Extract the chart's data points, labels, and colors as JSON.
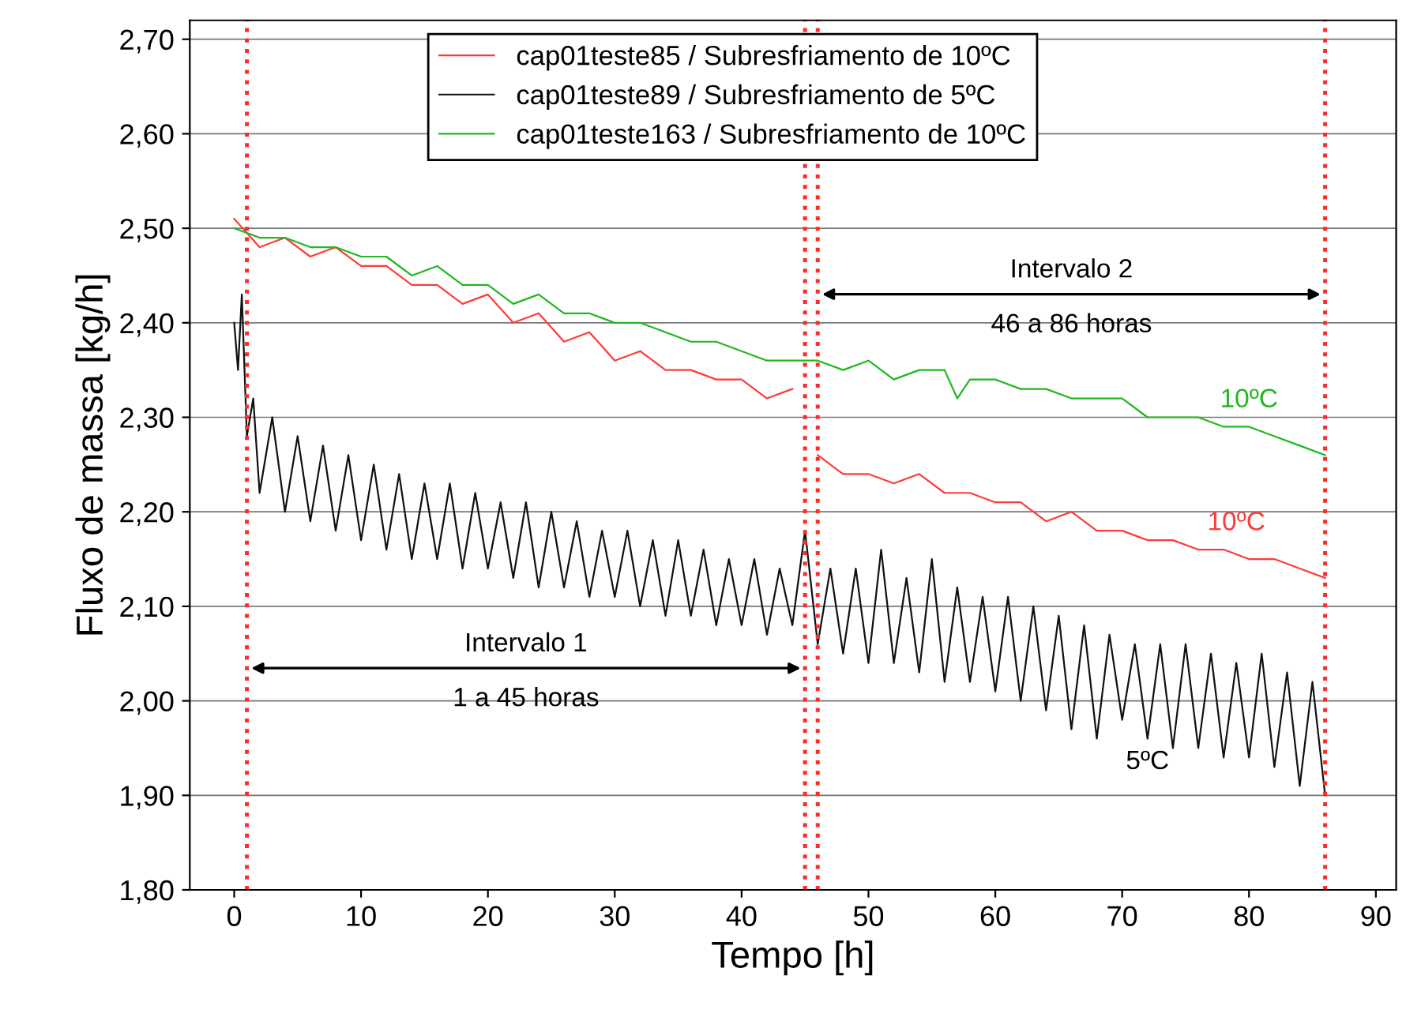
{
  "chart_data": {
    "type": "line",
    "xlabel": "Tempo [h]",
    "ylabel": "Fluxo de massa [kg/h]",
    "xlim": [
      -3.5,
      91.6
    ],
    "xticks": [
      0,
      10,
      20,
      30,
      40,
      50,
      60,
      70,
      80,
      90
    ],
    "ylim": [
      1.8,
      2.72
    ],
    "yticks": [
      {
        "value": 1.8,
        "label": "1,80"
      },
      {
        "value": 1.9,
        "label": "1,90"
      },
      {
        "value": 2.0,
        "label": "2,00"
      },
      {
        "value": 2.1,
        "label": "2,10"
      },
      {
        "value": 2.2,
        "label": "2,20"
      },
      {
        "value": 2.3,
        "label": "2,30"
      },
      {
        "value": 2.4,
        "label": "2,40"
      },
      {
        "value": 2.5,
        "label": "2,50"
      },
      {
        "value": 2.6,
        "label": "2,60"
      },
      {
        "value": 2.7,
        "label": "2,70"
      }
    ],
    "grid": "y",
    "legend": "top",
    "line_style": "solid",
    "marker": "none",
    "series": [
      {
        "name": "cap01teste85 / Subresfriamento de 10ºC",
        "color": "#ff3a3a",
        "x": [
          0,
          2,
          4,
          6,
          8,
          10,
          12,
          14,
          16,
          18,
          20,
          22,
          24,
          26,
          28,
          30,
          32,
          34,
          36,
          38,
          40,
          42,
          44,
          45,
          46,
          48,
          50,
          52,
          54,
          56,
          58,
          60,
          62,
          64,
          66,
          68,
          70,
          72,
          74,
          76,
          78,
          80,
          82,
          84,
          86
        ],
        "values": [
          2.51,
          2.48,
          2.49,
          2.47,
          2.48,
          2.46,
          2.46,
          2.44,
          2.44,
          2.42,
          2.43,
          2.4,
          2.41,
          2.38,
          2.39,
          2.36,
          2.37,
          2.35,
          2.35,
          2.34,
          2.34,
          2.32,
          2.33,
          null,
          2.26,
          2.24,
          2.24,
          2.23,
          2.24,
          2.22,
          2.22,
          2.21,
          2.21,
          2.19,
          2.2,
          2.18,
          2.18,
          2.17,
          2.17,
          2.16,
          2.16,
          2.15,
          2.15,
          2.14,
          2.13
        ]
      },
      {
        "name": "cap01teste89 / Subresfriamento de 5ºC",
        "color": "#111111",
        "x": [
          0,
          0.3,
          0.6,
          1,
          1.5,
          2,
          3,
          4,
          5,
          6,
          7,
          8,
          9,
          10,
          11,
          12,
          13,
          14,
          15,
          16,
          17,
          18,
          19,
          20,
          21,
          22,
          23,
          24,
          25,
          26,
          27,
          28,
          29,
          30,
          31,
          32,
          33,
          34,
          35,
          36,
          37,
          38,
          39,
          40,
          41,
          42,
          43,
          44,
          45,
          46,
          47,
          48,
          49,
          50,
          51,
          52,
          53,
          54,
          55,
          56,
          57,
          58,
          59,
          60,
          61,
          62,
          63,
          64,
          65,
          66,
          67,
          68,
          69,
          70,
          71,
          72,
          73,
          74,
          75,
          76,
          77,
          78,
          79,
          80,
          81,
          82,
          83,
          84,
          85,
          86
        ],
        "values": [
          2.4,
          2.35,
          2.43,
          2.28,
          2.32,
          2.22,
          2.3,
          2.2,
          2.28,
          2.19,
          2.27,
          2.18,
          2.26,
          2.17,
          2.25,
          2.16,
          2.24,
          2.15,
          2.23,
          2.15,
          2.23,
          2.14,
          2.22,
          2.14,
          2.21,
          2.13,
          2.21,
          2.12,
          2.2,
          2.12,
          2.19,
          2.11,
          2.18,
          2.11,
          2.18,
          2.1,
          2.17,
          2.09,
          2.17,
          2.09,
          2.16,
          2.08,
          2.15,
          2.08,
          2.15,
          2.07,
          2.14,
          2.08,
          2.18,
          2.06,
          2.14,
          2.05,
          2.14,
          2.04,
          2.16,
          2.04,
          2.13,
          2.03,
          2.15,
          2.02,
          2.12,
          2.02,
          2.11,
          2.01,
          2.11,
          2.0,
          2.1,
          1.99,
          2.09,
          1.97,
          2.08,
          1.96,
          2.07,
          1.98,
          2.06,
          1.96,
          2.06,
          1.95,
          2.06,
          1.95,
          2.05,
          1.94,
          2.04,
          1.94,
          2.05,
          1.93,
          2.03,
          1.91,
          2.02,
          1.9
        ]
      },
      {
        "name": "cap01teste163 / Subresfriamento de 10ºC",
        "color": "#1fb81f",
        "x": [
          0,
          2,
          4,
          6,
          8,
          10,
          12,
          14,
          16,
          18,
          20,
          22,
          24,
          26,
          28,
          30,
          32,
          34,
          36,
          38,
          40,
          42,
          44,
          46,
          48,
          50,
          52,
          54,
          56,
          57,
          58,
          60,
          62,
          64,
          66,
          68,
          70,
          72,
          74,
          76,
          78,
          80,
          82,
          84,
          86
        ],
        "values": [
          2.5,
          2.49,
          2.49,
          2.48,
          2.48,
          2.47,
          2.47,
          2.45,
          2.46,
          2.44,
          2.44,
          2.42,
          2.43,
          2.41,
          2.41,
          2.4,
          2.4,
          2.39,
          2.38,
          2.38,
          2.37,
          2.36,
          2.36,
          2.36,
          2.35,
          2.36,
          2.34,
          2.35,
          2.35,
          2.32,
          2.34,
          2.34,
          2.33,
          2.33,
          2.32,
          2.32,
          2.32,
          2.3,
          2.3,
          2.3,
          2.29,
          2.29,
          2.28,
          2.27,
          2.26
        ]
      }
    ],
    "ref_lines": [
      {
        "axis": "x",
        "value": 1,
        "color": "#ff2a2a",
        "line_style": "dotted"
      },
      {
        "axis": "x",
        "value": 45,
        "color": "#ff2a2a",
        "line_style": "dotted"
      },
      {
        "axis": "x",
        "value": 46,
        "color": "#ff2a2a",
        "line_style": "dotted"
      },
      {
        "axis": "x",
        "value": 86,
        "color": "#ff2a2a",
        "line_style": "dotted"
      }
    ],
    "annotations": [
      "Intervalo 1",
      "1 a 45 horas",
      "Intervalo 2",
      "46 a 86 horas",
      {
        "text": "10ºC",
        "x": 80,
        "y": 2.29
      },
      {
        "text": "10ºC",
        "x": 79,
        "y": 2.16
      },
      {
        "text": "5ºC",
        "x": 72,
        "y": 2.0
      }
    ]
  }
}
